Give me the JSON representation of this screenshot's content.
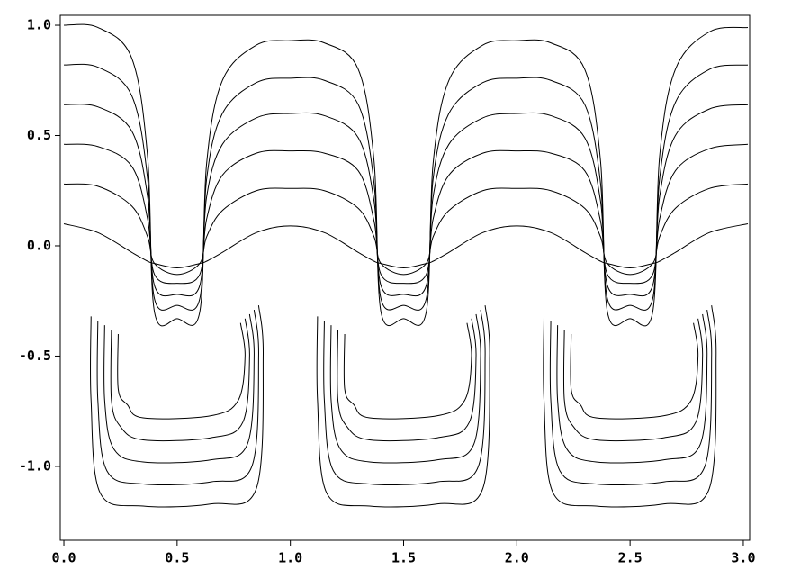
{
  "chart_data": {
    "type": "line",
    "xlim": [
      -0.016,
      3.028
    ],
    "ylim": [
      -1.335,
      1.045
    ],
    "xticks": [
      {
        "value": 0,
        "label": "0.0"
      },
      0.5,
      {
        "value": 1,
        "label": "1.0"
      },
      1.5,
      {
        "value": 2,
        "label": "2.0"
      },
      2.5,
      {
        "value": 3,
        "label": "3.0"
      }
    ],
    "yticks": [
      {
        "value": 1,
        "label": "1.0"
      },
      0.5,
      {
        "value": 0,
        "label": "0.0"
      },
      -0.5,
      {
        "value": -1,
        "label": "-1.0"
      }
    ],
    "color": "#000000",
    "series": [
      {
        "x": [
          0,
          0.15,
          0.3,
          0.37,
          0.4,
          0.5,
          0.6,
          0.63,
          0.7,
          0.85,
          1.0,
          1.15,
          1.3,
          1.37,
          1.4,
          1.5,
          1.6,
          1.63,
          1.7,
          1.85,
          2.0,
          2.15,
          2.3,
          2.37,
          2.4,
          2.5,
          2.6,
          2.63,
          2.7,
          2.85,
          3.02
        ],
        "values": [
          1.0,
          0.99,
          0.85,
          0.4,
          -0.3,
          -0.33,
          -0.3,
          0.37,
          0.75,
          0.91,
          0.93,
          0.92,
          0.8,
          0.38,
          -0.3,
          -0.33,
          -0.3,
          0.37,
          0.75,
          0.91,
          0.93,
          0.92,
          0.8,
          0.38,
          -0.3,
          -0.33,
          -0.3,
          0.4,
          0.8,
          0.97,
          0.99
        ]
      },
      {
        "x": [
          0,
          0.15,
          0.3,
          0.37,
          0.4,
          0.5,
          0.6,
          0.63,
          0.7,
          0.85,
          1.0,
          1.15,
          1.3,
          1.37,
          1.4,
          1.5,
          1.6,
          1.63,
          1.7,
          1.85,
          2.0,
          2.15,
          2.3,
          2.37,
          2.4,
          2.5,
          2.6,
          2.63,
          2.7,
          2.85,
          3.02
        ],
        "values": [
          0.82,
          0.81,
          0.68,
          0.3,
          -0.24,
          -0.27,
          -0.24,
          0.3,
          0.6,
          0.74,
          0.76,
          0.75,
          0.64,
          0.28,
          -0.24,
          -0.27,
          -0.24,
          0.3,
          0.6,
          0.74,
          0.76,
          0.75,
          0.64,
          0.28,
          -0.24,
          -0.27,
          -0.24,
          0.3,
          0.65,
          0.8,
          0.82
        ]
      },
      {
        "x": [
          0,
          0.15,
          0.3,
          0.37,
          0.4,
          0.5,
          0.6,
          0.63,
          0.7,
          0.85,
          1.0,
          1.15,
          1.3,
          1.37,
          1.4,
          1.5,
          1.6,
          1.63,
          1.7,
          1.85,
          2.0,
          2.15,
          2.3,
          2.37,
          2.4,
          2.5,
          2.6,
          2.63,
          2.7,
          2.85,
          3.02
        ],
        "values": [
          0.64,
          0.63,
          0.52,
          0.22,
          -0.18,
          -0.22,
          -0.18,
          0.22,
          0.46,
          0.58,
          0.6,
          0.59,
          0.49,
          0.2,
          -0.18,
          -0.22,
          -0.18,
          0.22,
          0.46,
          0.58,
          0.6,
          0.59,
          0.49,
          0.2,
          -0.18,
          -0.22,
          -0.18,
          0.22,
          0.5,
          0.62,
          0.64
        ]
      },
      {
        "x": [
          0,
          0.15,
          0.3,
          0.37,
          0.4,
          0.5,
          0.6,
          0.63,
          0.7,
          0.85,
          1.0,
          1.15,
          1.3,
          1.37,
          1.4,
          1.5,
          1.6,
          1.63,
          1.7,
          1.85,
          2.0,
          2.15,
          2.3,
          2.37,
          2.4,
          2.5,
          2.6,
          2.63,
          2.7,
          2.85,
          3.02
        ],
        "values": [
          0.46,
          0.45,
          0.36,
          0.12,
          -0.13,
          -0.17,
          -0.13,
          0.12,
          0.32,
          0.42,
          0.43,
          0.42,
          0.34,
          0.11,
          -0.13,
          -0.17,
          -0.13,
          0.12,
          0.32,
          0.42,
          0.43,
          0.42,
          0.34,
          0.11,
          -0.13,
          -0.17,
          -0.13,
          0.12,
          0.34,
          0.44,
          0.46
        ]
      },
      {
        "x": [
          0,
          0.15,
          0.3,
          0.37,
          0.4,
          0.5,
          0.6,
          0.63,
          0.7,
          0.85,
          1.0,
          1.15,
          1.3,
          1.37,
          1.4,
          1.5,
          1.6,
          1.63,
          1.7,
          1.85,
          2.0,
          2.15,
          2.3,
          2.37,
          2.4,
          2.5,
          2.6,
          2.63,
          2.7,
          2.85,
          3.02
        ],
        "values": [
          0.28,
          0.27,
          0.18,
          0.04,
          -0.08,
          -0.13,
          -0.08,
          0.04,
          0.16,
          0.25,
          0.26,
          0.25,
          0.17,
          0.04,
          -0.08,
          -0.13,
          -0.08,
          0.04,
          0.16,
          0.25,
          0.26,
          0.25,
          0.17,
          0.04,
          -0.08,
          -0.13,
          -0.08,
          0.04,
          0.17,
          0.26,
          0.28
        ]
      },
      {
        "x": [
          0,
          0.15,
          0.3,
          0.37,
          0.4,
          0.5,
          0.6,
          0.63,
          0.7,
          0.85,
          1.0,
          1.15,
          1.3,
          1.37,
          1.4,
          1.5,
          1.6,
          1.63,
          1.7,
          1.85,
          2.0,
          2.15,
          2.3,
          2.37,
          2.4,
          2.5,
          2.6,
          2.63,
          2.7,
          2.85,
          3.02
        ],
        "values": [
          0.1,
          0.06,
          -0.03,
          -0.07,
          -0.08,
          -0.1,
          -0.08,
          -0.07,
          -0.03,
          0.06,
          0.09,
          0.06,
          -0.03,
          -0.07,
          -0.08,
          -0.1,
          -0.08,
          -0.07,
          -0.03,
          0.06,
          0.09,
          0.06,
          -0.03,
          -0.07,
          -0.08,
          -0.1,
          -0.08,
          -0.07,
          -0.03,
          0.06,
          0.1
        ]
      },
      {
        "x": [
          0.12,
          0.12,
          0.16,
          0.35,
          0.65,
          0.85,
          0.88,
          0.86,
          null,
          1.12,
          1.12,
          1.16,
          1.35,
          1.65,
          1.85,
          1.88,
          1.86,
          null,
          2.12,
          2.12,
          2.16,
          2.35,
          2.65,
          2.85,
          2.88,
          2.86
        ],
        "values": [
          -0.32,
          -0.7,
          -1.12,
          -1.18,
          -1.17,
          -1.1,
          -0.5,
          -0.27,
          null,
          -0.32,
          -0.7,
          -1.12,
          -1.18,
          -1.17,
          -1.1,
          -0.5,
          -0.27,
          null,
          -0.32,
          -0.7,
          -1.12,
          -1.18,
          -1.17,
          -1.1,
          -0.5,
          -0.27
        ]
      },
      {
        "x": [
          0.15,
          0.15,
          0.19,
          0.35,
          0.65,
          0.83,
          0.86,
          0.84,
          null,
          1.15,
          1.15,
          1.19,
          1.35,
          1.65,
          1.83,
          1.86,
          1.84,
          null,
          2.15,
          2.15,
          2.19,
          2.35,
          2.65,
          2.83,
          2.86,
          2.84
        ],
        "values": [
          -0.34,
          -0.7,
          -1.02,
          -1.08,
          -1.07,
          -1.0,
          -0.5,
          -0.29,
          null,
          -0.34,
          -0.7,
          -1.02,
          -1.08,
          -1.07,
          -1.0,
          -0.5,
          -0.29,
          null,
          -0.34,
          -0.7,
          -1.02,
          -1.08,
          -1.07,
          -1.0,
          -0.5,
          -0.29
        ]
      },
      {
        "x": [
          0.18,
          0.18,
          0.22,
          0.35,
          0.65,
          0.81,
          0.84,
          0.82,
          null,
          1.18,
          1.18,
          1.22,
          1.35,
          1.65,
          1.81,
          1.84,
          1.82,
          null,
          2.18,
          2.18,
          2.22,
          2.35,
          2.65,
          2.81,
          2.84,
          2.82
        ],
        "values": [
          -0.36,
          -0.7,
          -0.92,
          -0.98,
          -0.97,
          -0.9,
          -0.5,
          -0.31,
          null,
          -0.36,
          -0.7,
          -0.92,
          -0.98,
          -0.97,
          -0.9,
          -0.5,
          -0.31,
          null,
          -0.36,
          -0.7,
          -0.92,
          -0.98,
          -0.97,
          -0.9,
          -0.5,
          -0.31
        ]
      },
      {
        "x": [
          0.21,
          0.21,
          0.25,
          0.35,
          0.65,
          0.79,
          0.82,
          0.8,
          null,
          1.21,
          1.21,
          1.25,
          1.35,
          1.65,
          1.79,
          1.82,
          1.8,
          null,
          2.21,
          2.21,
          2.25,
          2.35,
          2.65,
          2.79,
          2.82,
          2.8
        ],
        "values": [
          -0.38,
          -0.7,
          -0.82,
          -0.88,
          -0.87,
          -0.8,
          -0.5,
          -0.33,
          null,
          -0.38,
          -0.7,
          -0.82,
          -0.88,
          -0.87,
          -0.8,
          -0.5,
          -0.33,
          null,
          -0.38,
          -0.7,
          -0.82,
          -0.88,
          -0.87,
          -0.8,
          -0.5,
          -0.33
        ]
      },
      {
        "x": [
          0.24,
          0.24,
          0.28,
          0.35,
          0.65,
          0.77,
          0.8,
          0.78,
          null,
          1.24,
          1.24,
          1.28,
          1.35,
          1.65,
          1.77,
          1.8,
          1.78,
          null,
          2.24,
          2.24,
          2.28,
          2.35,
          2.65,
          2.77,
          2.8,
          2.78
        ],
        "values": [
          -0.4,
          -0.65,
          -0.72,
          -0.78,
          -0.77,
          -0.7,
          -0.5,
          -0.35,
          null,
          -0.4,
          -0.65,
          -0.72,
          -0.78,
          -0.77,
          -0.7,
          -0.5,
          -0.35,
          null,
          -0.4,
          -0.65,
          -0.72,
          -0.78,
          -0.77,
          -0.7,
          -0.5,
          -0.35
        ]
      }
    ]
  }
}
